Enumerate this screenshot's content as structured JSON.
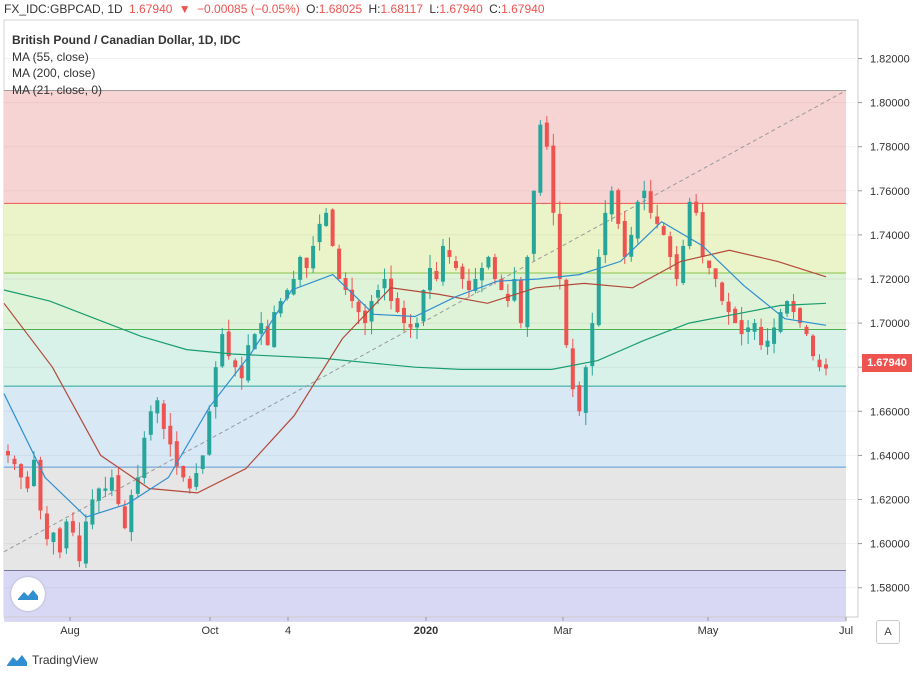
{
  "header": {
    "symbol": "FX_IDC:GBPCAD, 1D",
    "last": "1.67940",
    "change": "−0.00085 (−0.05%)",
    "o_label": "O:",
    "o": "1.68025",
    "h_label": "H:",
    "h": "1.68117",
    "l_label": "L:",
    "l": "1.67940",
    "c_label": "C:",
    "c": "1.67940"
  },
  "legend": {
    "title": "British Pound / Canadian Dollar, 1D, IDC",
    "ma1": "MA (55, close)",
    "ma2": "MA (200, close)",
    "ma3": "MA (21, close, 0)"
  },
  "branding": {
    "name": "TradingView"
  },
  "auto_button": "A",
  "price_tag": "1.67940",
  "colors": {
    "up": "#26a69a",
    "down": "#ef5350",
    "ma55": "#2f8fd0",
    "ma200": "#1a9c6e",
    "ma21": "#b24a3a",
    "fib_lines": [
      "#ef5350",
      "#8bc34a",
      "#4caf50",
      "#26a69a",
      "#5b9ad6",
      "#333399"
    ],
    "fib_zones": [
      "#f7d4d4",
      "#eaf4c8",
      "#dff3d9",
      "#d8f2ea",
      "#d8e8f5",
      "#e6e6e6",
      "#d8d8f5"
    ]
  },
  "chart_data": {
    "type": "candlestick",
    "symbol": "GBPCAD",
    "timeframe": "1D",
    "y_axis": {
      "min": 1.57,
      "max": 1.83,
      "ticks": [
        "1.82000",
        "1.80000",
        "1.78000",
        "1.76000",
        "1.74000",
        "1.72000",
        "1.70000",
        "1.68000",
        "1.66000",
        "1.64000",
        "1.62000",
        "1.60000",
        "1.58000"
      ]
    },
    "x_axis": {
      "tick_labels": [
        "Aug",
        "Oct",
        "4",
        "2020",
        "Mar",
        "May",
        "Jul"
      ]
    },
    "last_price": 1.6794,
    "fib_levels": [
      1.8055,
      1.7543,
      1.7227,
      1.6971,
      1.6714,
      1.6347,
      1.5878
    ],
    "trend_line": {
      "from": 1.5963,
      "to": 1.8055
    },
    "close_path": [
      1.64,
      1.636,
      1.63,
      1.625,
      1.638,
      1.615,
      1.602,
      1.605,
      1.596,
      1.61,
      1.605,
      1.592,
      1.61,
      1.62,
      1.625,
      1.625,
      1.63,
      1.618,
      1.607,
      1.622,
      1.63,
      1.648,
      1.66,
      1.665,
      1.652,
      1.645,
      1.635,
      1.63,
      1.625,
      1.632,
      1.64,
      1.66,
      1.68,
      1.695,
      1.685,
      1.68,
      1.675,
      1.69,
      1.695,
      1.7,
      1.69,
      1.705,
      1.71,
      1.715,
      1.72,
      1.73,
      1.725,
      1.735,
      1.745,
      1.75,
      1.735,
      1.72,
      1.715,
      1.71,
      1.705,
      1.7,
      1.71,
      1.715,
      1.72,
      1.71,
      1.705,
      1.7,
      1.698,
      1.7,
      1.715,
      1.725,
      1.72,
      1.735,
      1.73,
      1.725,
      1.72,
      1.715,
      1.72,
      1.725,
      1.73,
      1.72,
      1.715,
      1.71,
      1.72,
      1.7,
      1.73,
      1.76,
      1.79,
      1.78,
      1.75,
      1.72,
      1.69,
      1.67,
      1.66,
      1.68,
      1.7,
      1.73,
      1.75,
      1.76,
      1.745,
      1.73,
      1.74,
      1.755,
      1.76,
      1.75,
      1.745,
      1.74,
      1.73,
      1.72,
      1.735,
      1.755,
      1.75,
      1.73,
      1.725,
      1.72,
      1.71,
      1.705,
      1.7,
      1.695,
      1.698,
      1.7,
      1.69,
      1.692,
      1.698,
      1.705,
      1.71,
      1.705,
      1.7,
      1.695,
      1.685,
      1.68,
      1.6794
    ],
    "ma55": [
      1.668,
      1.63,
      1.612,
      1.618,
      1.63,
      1.662,
      1.686,
      1.715,
      1.722,
      1.704,
      1.703,
      1.712,
      1.719,
      1.72,
      1.722,
      1.728,
      1.746,
      1.735,
      1.717,
      1.702,
      1.699
    ],
    "ma200": [
      1.715,
      1.71,
      1.702,
      1.694,
      1.688,
      1.686,
      1.685,
      1.684,
      1.682,
      1.68,
      1.679,
      1.679,
      1.679,
      1.683,
      1.692,
      1.7,
      1.704,
      1.708,
      1.709
    ],
    "ma21": [
      1.709,
      1.68,
      1.64,
      1.625,
      1.623,
      1.634,
      1.658,
      1.693,
      1.716,
      1.713,
      1.709,
      1.716,
      1.718,
      1.716,
      1.728,
      1.733,
      1.728,
      1.721
    ]
  }
}
